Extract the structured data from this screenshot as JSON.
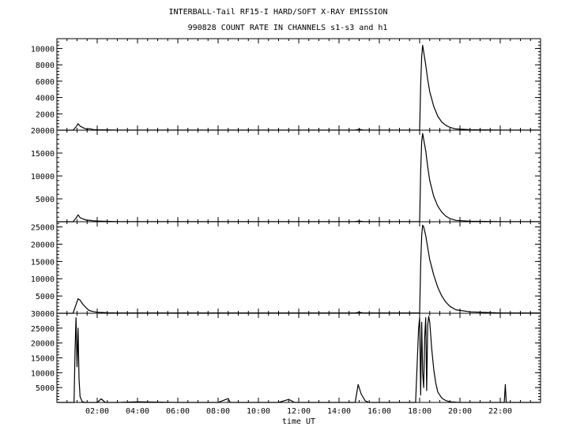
{
  "chart_data": {
    "type": "line",
    "title": "INTERBALL-Tail RF15-I HARD/SOFT X-RAY EMISSION",
    "subtitle": "990828  COUNT RATE IN CHANNELS s1-s3 and h1",
    "xlabel": "time UT",
    "x_unit": "hours UT",
    "xlim": [
      0,
      24
    ],
    "x_ticks": [
      {
        "value": 2,
        "label": "02:00"
      },
      {
        "value": 4,
        "label": "04:00"
      },
      {
        "value": 6,
        "label": "06:00"
      },
      {
        "value": 8,
        "label": "08:00"
      },
      {
        "value": 10,
        "label": "10:00"
      },
      {
        "value": 12,
        "label": "12:00"
      },
      {
        "value": 14,
        "label": "14:00"
      },
      {
        "value": 16,
        "label": "16:00"
      },
      {
        "value": 18,
        "label": "18:00"
      },
      {
        "value": 20,
        "label": "20:00"
      },
      {
        "value": 22,
        "label": "22:00"
      }
    ],
    "panels": [
      {
        "ylim": [
          0,
          11200
        ],
        "y_ticks": [
          2000,
          4000,
          6000,
          8000,
          10000
        ],
        "series": {
          "x": [
            0,
            0.8,
            0.95,
            1.05,
            1.15,
            1.3,
            1.5,
            1.6,
            1.8,
            2,
            2.5,
            3,
            6,
            10,
            14,
            14.8,
            15,
            15.2,
            15.5,
            16,
            17,
            17.8,
            18,
            18.05,
            18.1,
            18.15,
            18.2,
            18.3,
            18.4,
            18.5,
            18.7,
            18.9,
            19.1,
            19.3,
            19.5,
            19.8,
            20.5,
            22,
            24
          ],
          "y": [
            0,
            0,
            400,
            800,
            500,
            300,
            100,
            200,
            80,
            60,
            40,
            20,
            20,
            20,
            20,
            20,
            120,
            20,
            20,
            20,
            20,
            20,
            30,
            5500,
            9000,
            10400,
            9600,
            8000,
            6200,
            4700,
            2900,
            1700,
            1000,
            600,
            350,
            150,
            60,
            20,
            20
          ]
        }
      },
      {
        "ylim": [
          0,
          20000
        ],
        "y_ticks": [
          5000,
          10000,
          15000,
          20000
        ],
        "series": {
          "x": [
            0,
            0.8,
            0.95,
            1.05,
            1.15,
            1.3,
            1.5,
            1.6,
            1.8,
            2,
            2.5,
            3,
            6,
            10,
            14,
            14.8,
            15,
            15.2,
            15.5,
            16,
            17,
            17.8,
            18,
            18.05,
            18.1,
            18.15,
            18.2,
            18.3,
            18.4,
            18.5,
            18.7,
            18.9,
            19.1,
            19.3,
            19.5,
            19.8,
            20.5,
            22,
            24
          ],
          "y": [
            0,
            0,
            800,
            1500,
            900,
            600,
            300,
            350,
            200,
            150,
            80,
            40,
            40,
            40,
            40,
            40,
            150,
            40,
            40,
            40,
            40,
            40,
            60,
            11000,
            17500,
            19300,
            18000,
            15500,
            12000,
            9000,
            5500,
            3400,
            2100,
            1200,
            700,
            300,
            120,
            40,
            40
          ]
        }
      },
      {
        "ylim": [
          0,
          26500
        ],
        "y_ticks": [
          5000,
          10000,
          15000,
          20000,
          25000
        ],
        "series": {
          "x": [
            0,
            0.8,
            0.95,
            1.05,
            1.15,
            1.3,
            1.5,
            1.6,
            1.8,
            2,
            2.5,
            3,
            6,
            10,
            14,
            14.8,
            15,
            15.2,
            15.5,
            16,
            17,
            17.8,
            18,
            18.05,
            18.1,
            18.15,
            18.2,
            18.3,
            18.4,
            18.5,
            18.7,
            18.9,
            19.1,
            19.3,
            19.5,
            19.8,
            20.5,
            22,
            24
          ],
          "y": [
            0,
            0,
            2500,
            4200,
            3800,
            2500,
            1300,
            800,
            500,
            300,
            150,
            80,
            80,
            80,
            80,
            80,
            300,
            80,
            80,
            80,
            80,
            80,
            120,
            14000,
            22500,
            25500,
            25000,
            22500,
            19000,
            15500,
            11000,
            7500,
            5000,
            3200,
            2000,
            1000,
            400,
            100,
            100
          ]
        }
      },
      {
        "ylim": [
          0,
          30000
        ],
        "y_ticks": [
          5000,
          10000,
          15000,
          20000,
          25000,
          30000
        ],
        "series": {
          "x": [
            0,
            0.85,
            0.9,
            0.95,
            1.0,
            1.05,
            1.1,
            1.15,
            1.25,
            1.4,
            2.0,
            2.2,
            2.4,
            3,
            4,
            6,
            8,
            8.5,
            8.6,
            9,
            11,
            11.5,
            11.8,
            12,
            13,
            14.8,
            14.95,
            15.1,
            15.3,
            15.5,
            16,
            17.8,
            17.95,
            18,
            18.05,
            18.1,
            18.15,
            18.2,
            18.25,
            18.3,
            18.35,
            18.4,
            18.45,
            18.5,
            18.6,
            18.7,
            18.8,
            18.9,
            19.1,
            19.3,
            19.5,
            20,
            21,
            22.2,
            22.25,
            22.3,
            22.35,
            22.4,
            24
          ],
          "y": [
            0,
            0,
            18000,
            28500,
            12000,
            25000,
            8000,
            2000,
            300,
            0,
            0,
            1200,
            0,
            0,
            200,
            0,
            0,
            1300,
            0,
            0,
            0,
            1000,
            0,
            0,
            0,
            0,
            6000,
            2800,
            500,
            0,
            0,
            0,
            25000,
            28500,
            2500,
            27000,
            10000,
            5000,
            22000,
            28500,
            4000,
            26000,
            29000,
            27000,
            18000,
            11000,
            6500,
            3500,
            1500,
            600,
            200,
            0,
            0,
            0,
            6000,
            0,
            0,
            0,
            0
          ]
        }
      }
    ]
  }
}
